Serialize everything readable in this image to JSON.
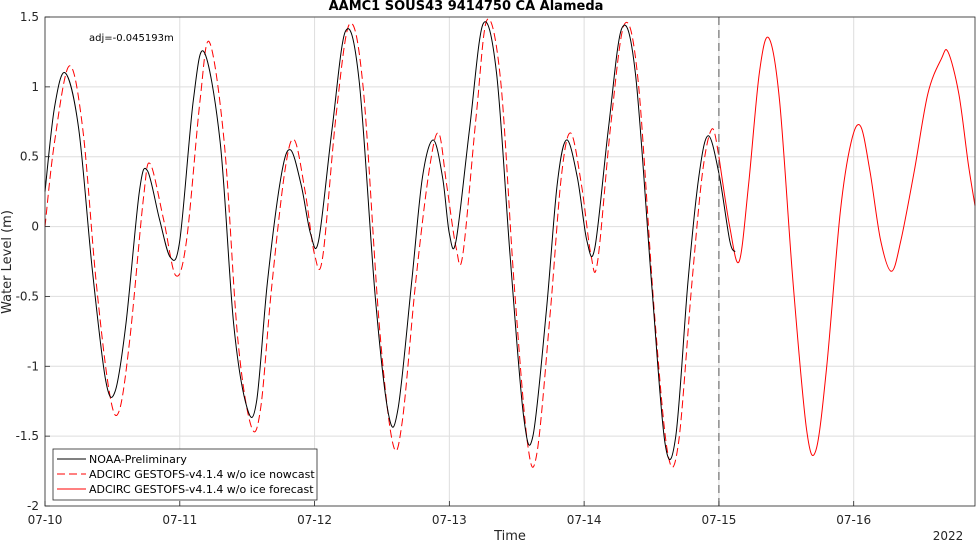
{
  "chart_data": {
    "type": "line",
    "title": "AAMC1 SOUS43 9414750 CA Alameda",
    "xlabel": "Time",
    "ylabel": "Water Level (m)",
    "annotation": "adj=-0.045193m",
    "year_label": "2022",
    "xlim": [
      0,
      6.9
    ],
    "ylim": [
      -2,
      1.5
    ],
    "xticks": [
      0,
      1,
      2,
      3,
      4,
      5,
      6
    ],
    "xtick_labels": [
      "07-10",
      "07-11",
      "07-12",
      "07-13",
      "07-14",
      "07-15",
      "07-16"
    ],
    "yticks": [
      -2,
      -1.5,
      -1,
      -0.5,
      0,
      0.5,
      1,
      1.5
    ],
    "ytick_labels": [
      "-2",
      "-1.5",
      "-1",
      "-0.5",
      "0",
      "0.5",
      "1",
      "1.5"
    ],
    "grid": true,
    "nowcast_end_x": 5.0,
    "legend_position": "bottom-left",
    "series": [
      {
        "name": "NOAA-Preliminary",
        "color": "#000000",
        "dash": "solid",
        "points": [
          [
            0.0,
            0.25
          ],
          [
            0.07,
            0.85
          ],
          [
            0.15,
            1.1
          ],
          [
            0.25,
            0.7
          ],
          [
            0.35,
            -0.3
          ],
          [
            0.45,
            -1.1
          ],
          [
            0.52,
            -1.18
          ],
          [
            0.6,
            -0.7
          ],
          [
            0.7,
            0.25
          ],
          [
            0.76,
            0.4
          ],
          [
            0.85,
            0.05
          ],
          [
            0.93,
            -0.22
          ],
          [
            1.0,
            -0.1
          ],
          [
            1.1,
            0.9
          ],
          [
            1.18,
            1.25
          ],
          [
            1.3,
            0.6
          ],
          [
            1.4,
            -0.7
          ],
          [
            1.5,
            -1.3
          ],
          [
            1.57,
            -1.25
          ],
          [
            1.65,
            -0.4
          ],
          [
            1.75,
            0.35
          ],
          [
            1.82,
            0.55
          ],
          [
            1.9,
            0.3
          ],
          [
            1.97,
            -0.05
          ],
          [
            2.03,
            -0.1
          ],
          [
            2.13,
            0.7
          ],
          [
            2.23,
            1.4
          ],
          [
            2.33,
            1.05
          ],
          [
            2.45,
            -0.5
          ],
          [
            2.55,
            -1.35
          ],
          [
            2.62,
            -1.3
          ],
          [
            2.72,
            -0.4
          ],
          [
            2.8,
            0.35
          ],
          [
            2.88,
            0.62
          ],
          [
            2.95,
            0.35
          ],
          [
            3.0,
            -0.05
          ],
          [
            3.05,
            -0.1
          ],
          [
            3.15,
            0.7
          ],
          [
            3.25,
            1.45
          ],
          [
            3.35,
            1.1
          ],
          [
            3.45,
            -0.2
          ],
          [
            3.55,
            -1.35
          ],
          [
            3.62,
            -1.5
          ],
          [
            3.72,
            -0.6
          ],
          [
            3.8,
            0.3
          ],
          [
            3.87,
            0.62
          ],
          [
            3.95,
            0.35
          ],
          [
            4.02,
            -0.1
          ],
          [
            4.08,
            -0.15
          ],
          [
            4.18,
            0.7
          ],
          [
            4.28,
            1.42
          ],
          [
            4.38,
            1.1
          ],
          [
            4.5,
            -0.4
          ],
          [
            4.6,
            -1.55
          ],
          [
            4.68,
            -1.5
          ],
          [
            4.77,
            -0.4
          ],
          [
            4.85,
            0.35
          ],
          [
            4.92,
            0.65
          ],
          [
            5.0,
            0.38
          ],
          [
            5.08,
            -0.1
          ],
          [
            5.12,
            -0.18
          ]
        ]
      },
      {
        "name": "ADCIRC GESTOFS-v4.1.4 w/o ice nowcast",
        "color": "#ff0000",
        "dash": "dashed",
        "points": [
          [
            0.0,
            0.0
          ],
          [
            0.07,
            0.6
          ],
          [
            0.18,
            1.15
          ],
          [
            0.28,
            0.7
          ],
          [
            0.38,
            -0.4
          ],
          [
            0.48,
            -1.2
          ],
          [
            0.55,
            -1.32
          ],
          [
            0.63,
            -0.8
          ],
          [
            0.73,
            0.2
          ],
          [
            0.78,
            0.45
          ],
          [
            0.88,
            0.05
          ],
          [
            0.97,
            -0.35
          ],
          [
            1.05,
            -0.1
          ],
          [
            1.15,
            0.9
          ],
          [
            1.22,
            1.32
          ],
          [
            1.33,
            0.6
          ],
          [
            1.43,
            -0.8
          ],
          [
            1.53,
            -1.43
          ],
          [
            1.6,
            -1.3
          ],
          [
            1.68,
            -0.45
          ],
          [
            1.78,
            0.4
          ],
          [
            1.85,
            0.62
          ],
          [
            1.93,
            0.25
          ],
          [
            2.0,
            -0.2
          ],
          [
            2.06,
            -0.22
          ],
          [
            2.16,
            0.8
          ],
          [
            2.26,
            1.45
          ],
          [
            2.36,
            1.0
          ],
          [
            2.48,
            -0.7
          ],
          [
            2.58,
            -1.55
          ],
          [
            2.65,
            -1.4
          ],
          [
            2.75,
            -0.4
          ],
          [
            2.85,
            0.4
          ],
          [
            2.92,
            0.67
          ],
          [
            2.98,
            0.3
          ],
          [
            3.05,
            -0.15
          ],
          [
            3.1,
            -0.2
          ],
          [
            3.2,
            0.8
          ],
          [
            3.28,
            1.48
          ],
          [
            3.38,
            1.05
          ],
          [
            3.48,
            -0.4
          ],
          [
            3.58,
            -1.55
          ],
          [
            3.65,
            -1.62
          ],
          [
            3.75,
            -0.6
          ],
          [
            3.83,
            0.35
          ],
          [
            3.9,
            0.67
          ],
          [
            3.98,
            0.3
          ],
          [
            4.05,
            -0.2
          ],
          [
            4.1,
            -0.25
          ],
          [
            4.2,
            0.75
          ],
          [
            4.3,
            1.45
          ],
          [
            4.4,
            1.05
          ],
          [
            4.52,
            -0.6
          ],
          [
            4.62,
            -1.62
          ],
          [
            4.7,
            -1.55
          ],
          [
            4.8,
            -0.4
          ],
          [
            4.88,
            0.4
          ],
          [
            4.95,
            0.7
          ],
          [
            5.0,
            0.5
          ]
        ]
      },
      {
        "name": "ADCIRC GESTOFS-v4.1.4 w/o ice forecast",
        "color": "#ff0000",
        "dash": "solid",
        "points": [
          [
            5.0,
            0.5
          ],
          [
            5.08,
            0.0
          ],
          [
            5.15,
            -0.25
          ],
          [
            5.22,
            0.3
          ],
          [
            5.3,
            1.1
          ],
          [
            5.37,
            1.35
          ],
          [
            5.45,
            0.9
          ],
          [
            5.55,
            -0.4
          ],
          [
            5.65,
            -1.45
          ],
          [
            5.72,
            -1.6
          ],
          [
            5.8,
            -1.0
          ],
          [
            5.9,
            0.1
          ],
          [
            5.98,
            0.6
          ],
          [
            6.05,
            0.72
          ],
          [
            6.12,
            0.4
          ],
          [
            6.2,
            -0.1
          ],
          [
            6.28,
            -0.32
          ],
          [
            6.35,
            -0.1
          ],
          [
            6.45,
            0.4
          ],
          [
            6.55,
            0.95
          ],
          [
            6.65,
            1.2
          ],
          [
            6.7,
            1.25
          ],
          [
            6.78,
            0.95
          ],
          [
            6.85,
            0.45
          ],
          [
            6.9,
            0.15
          ]
        ]
      }
    ]
  }
}
